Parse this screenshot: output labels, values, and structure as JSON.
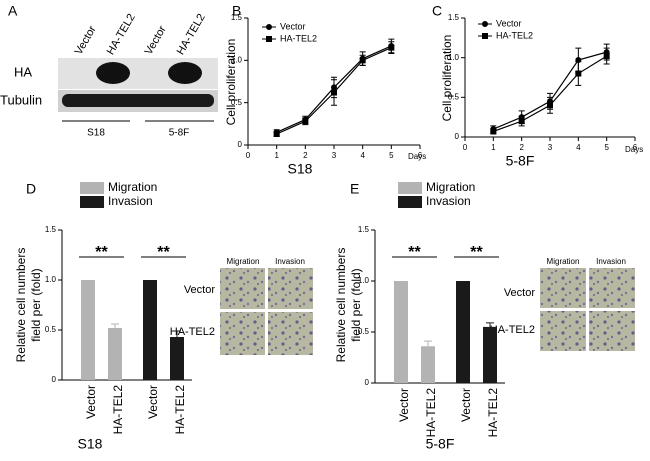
{
  "blot": {
    "panel": "A",
    "lanes": [
      "Vector",
      "HA-TEL2",
      "Vector",
      "HA-TEL2"
    ],
    "rows": [
      "HA",
      "Tubulin"
    ],
    "groups": [
      "S18",
      "5-8F"
    ]
  },
  "micrographs": [
    {
      "columns": [
        "Migration",
        "Invasion"
      ],
      "rows": [
        "Vector",
        "HA-TEL2"
      ]
    },
    {
      "columns": [
        "Migration",
        "Invasion"
      ],
      "rows": [
        "Vector",
        "HA-TEL2"
      ]
    }
  ],
  "chart_data": [
    {
      "type": "line",
      "panel": "B",
      "title": "S18",
      "xlabel": "Days",
      "ylabel": "Cell proliferation",
      "x": [
        1,
        2,
        3,
        4,
        5
      ],
      "xlim": [
        0,
        6
      ],
      "xticks": [
        0,
        1,
        2,
        3,
        4,
        5,
        6
      ],
      "ylim": [
        0,
        1.5
      ],
      "yticks": [
        0,
        0.5,
        {
          "value": 1,
          "label": "1.0"
        },
        1.5
      ],
      "series": [
        {
          "name": "Vector",
          "color": "#000000",
          "marker": "circle",
          "values": [
            0.15,
            0.3,
            0.68,
            1.02,
            1.17
          ],
          "errors": [
            0.03,
            0.04,
            0.12,
            0.08,
            0.08
          ]
        },
        {
          "name": "HA-TEL2",
          "color": "#000000",
          "marker": "square",
          "values": [
            0.13,
            0.28,
            0.62,
            1.0,
            1.15
          ],
          "errors": [
            0.03,
            0.04,
            0.15,
            0.06,
            0.07
          ]
        }
      ]
    },
    {
      "type": "line",
      "panel": "C",
      "title": "5-8F",
      "xlabel": "Days",
      "ylabel": "Cell proliferation",
      "x": [
        1,
        2,
        3,
        4,
        5
      ],
      "xlim": [
        0,
        6
      ],
      "xticks": [
        0,
        1,
        2,
        3,
        4,
        5,
        6
      ],
      "ylim": [
        0,
        1.5
      ],
      "yticks": [
        0,
        0.5,
        {
          "value": 1,
          "label": "1.0"
        },
        1.5
      ],
      "series": [
        {
          "name": "Vector",
          "color": "#000000",
          "marker": "circle",
          "values": [
            0.1,
            0.25,
            0.45,
            0.97,
            1.07
          ],
          "errors": [
            0.04,
            0.08,
            0.1,
            0.15,
            0.1
          ]
        },
        {
          "name": "HA-TEL2",
          "color": "#000000",
          "marker": "square",
          "values": [
            0.07,
            0.2,
            0.4,
            0.8,
            1.02
          ],
          "errors": [
            0.03,
            0.06,
            0.1,
            0.15,
            0.1
          ]
        }
      ]
    },
    {
      "type": "bar",
      "panel": "D",
      "title": "S18",
      "ylabel": [
        "Relative cell numbers",
        "field per (fold)"
      ],
      "categories": [
        "Vector",
        "HA-TEL2",
        "Vector",
        "HA-TEL2"
      ],
      "ylim": [
        0,
        1.5
      ],
      "yticks": [
        0,
        0.5,
        {
          "value": 1,
          "label": "1.0"
        },
        1.5
      ],
      "annotations": [
        "**",
        "**"
      ],
      "series": [
        {
          "name": "Migration",
          "color": "#b3b3b3",
          "values": [
            1,
            0.52,
            null,
            null
          ],
          "errors": [
            null,
            0.04,
            null,
            null
          ]
        },
        {
          "name": "Invasion",
          "color": "#1a1a1a",
          "values": [
            null,
            null,
            1,
            0.43
          ],
          "errors": [
            null,
            null,
            null,
            0.06
          ]
        }
      ]
    },
    {
      "type": "bar",
      "panel": "E",
      "title": "5-8F",
      "ylabel": [
        "Relative cell numbers",
        "field per (fold)"
      ],
      "categories": [
        "Vector",
        "HA-TEL2",
        "Vector",
        "HA-TEL2"
      ],
      "ylim": [
        0,
        1.5
      ],
      "yticks": [
        0,
        0.5,
        {
          "value": 1,
          "label": "1.0"
        },
        1.5
      ],
      "annotations": [
        "**",
        "**"
      ],
      "series": [
        {
          "name": "Migration",
          "color": "#b3b3b3",
          "values": [
            1,
            0.36,
            null,
            null
          ],
          "errors": [
            null,
            0.05,
            null,
            null
          ]
        },
        {
          "name": "Invasion",
          "color": "#1a1a1a",
          "values": [
            null,
            null,
            1,
            0.55
          ],
          "errors": [
            null,
            null,
            null,
            0.04
          ]
        }
      ]
    }
  ]
}
